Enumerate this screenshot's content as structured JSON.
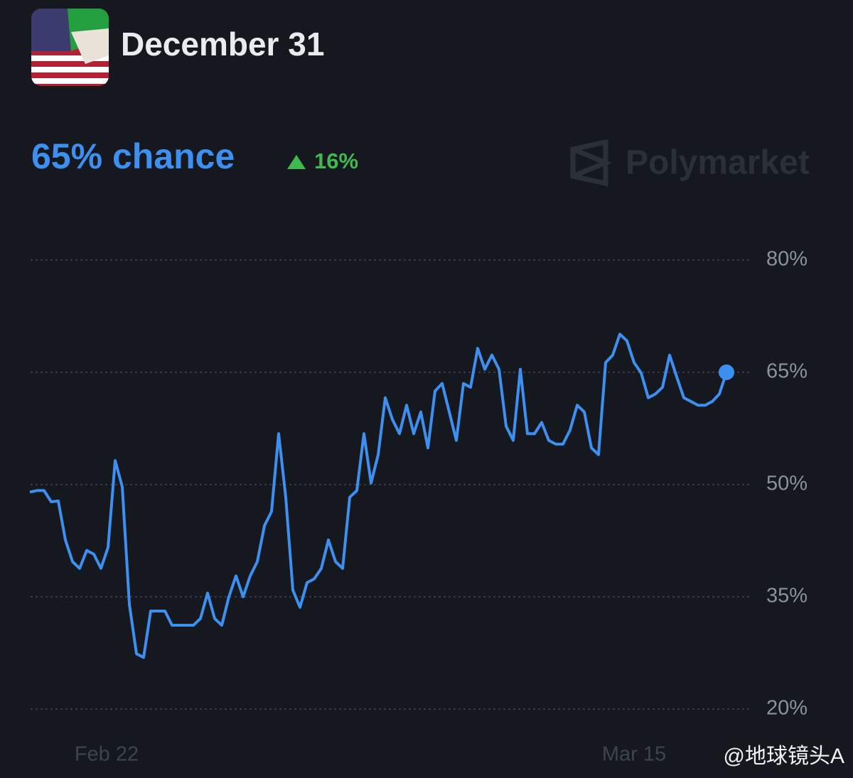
{
  "header": {
    "title": "December 31",
    "chance": "65% chance",
    "change": "16%",
    "brand": "Polymarket"
  },
  "chart_data": {
    "type": "line",
    "xlim": [
      0,
      98
    ],
    "xticks": [
      {
        "value": 10.8,
        "label": "Feb 22"
      },
      {
        "value": 85,
        "label": "Mar 15"
      }
    ],
    "ylim": [
      20,
      80
    ],
    "yticks": [
      {
        "value": 20,
        "label": "20%"
      },
      {
        "value": 35,
        "label": "35%"
      },
      {
        "value": 50,
        "label": "50%"
      },
      {
        "value": 65,
        "label": "65%"
      },
      {
        "value": 80,
        "label": "80%"
      }
    ],
    "grid": true,
    "series": [
      {
        "color": "#3d8ff0",
        "values": [
          49.0,
          49.2,
          49.2,
          47.7,
          47.8,
          42.6,
          39.7,
          38.8,
          41.2,
          40.7,
          38.8,
          41.6,
          53.2,
          49.7,
          34.0,
          27.4,
          26.9,
          33.1,
          33.1,
          33.1,
          31.2,
          31.2,
          31.2,
          31.2,
          32.1,
          35.5,
          32.1,
          31.2,
          35.0,
          37.8,
          35.0,
          37.8,
          39.7,
          44.5,
          46.4,
          56.8,
          48.3,
          35.9,
          33.6,
          36.9,
          37.4,
          38.8,
          42.6,
          39.7,
          38.8,
          48.3,
          49.2,
          56.8,
          50.2,
          54.0,
          61.6,
          58.7,
          56.8,
          60.6,
          56.8,
          59.7,
          54.9,
          62.5,
          63.5,
          59.7,
          55.9,
          63.5,
          63.0,
          68.2,
          65.4,
          67.3,
          65.4,
          57.8,
          55.9,
          65.4,
          56.8,
          56.8,
          58.3,
          55.9,
          55.4,
          55.4,
          57.3,
          60.6,
          59.7,
          54.9,
          54.0,
          66.3,
          67.3,
          70.1,
          69.2,
          66.3,
          64.9,
          61.6,
          62.1,
          63.0,
          67.3,
          64.4,
          61.6,
          61.1,
          60.6,
          60.6,
          61.1,
          62.1,
          65.0
        ]
      }
    ]
  },
  "watermark": "@地球镜头A"
}
